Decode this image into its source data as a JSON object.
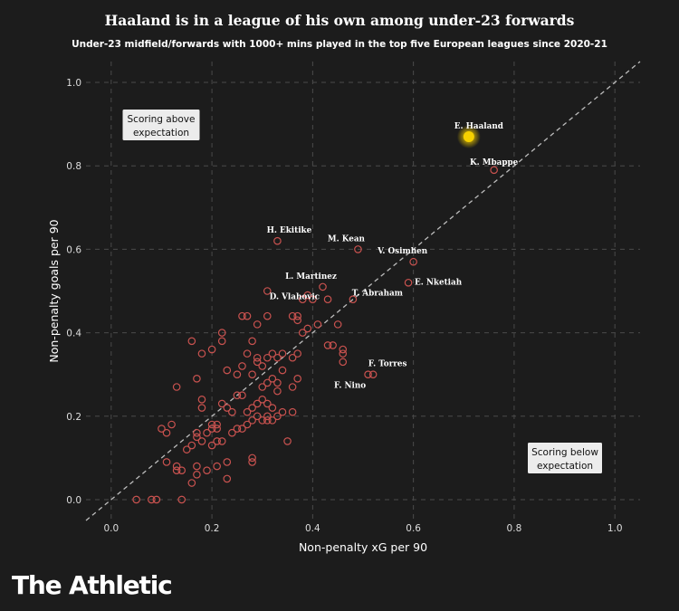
{
  "brand": "The Athletic",
  "chart_data": {
    "type": "scatter",
    "title": "Haaland is in a league of his own among under-23 forwards",
    "subtitle": "Under-23 midfield/forwards with 1000+ mins played in the top five European leagues since 2020-21",
    "xlabel": "Non-penalty xG per 90",
    "ylabel": "Non-penalty goals per 90",
    "xlim": [
      -0.05,
      1.05
    ],
    "ylim": [
      -0.05,
      1.05
    ],
    "xticks": [
      "0.0",
      "0.2",
      "0.4",
      "0.6",
      "0.8",
      "1.0"
    ],
    "yticks": [
      "0.0",
      "0.2",
      "0.4",
      "0.6",
      "0.8",
      "1.0"
    ],
    "grid": true,
    "reference_line": "y = x",
    "annotations": {
      "above": "Scoring above expectation",
      "below": "Scoring below expectation"
    },
    "colors": {
      "point": "#c9524f",
      "highlight": "#f5d000",
      "background": "#1c1c1c"
    },
    "highlight": {
      "name": "E. Haaland",
      "x": 0.71,
      "y": 0.87
    },
    "labeled": [
      {
        "name": "K. Mbappe",
        "x": 0.76,
        "y": 0.79
      },
      {
        "name": "H. Ekitike",
        "x": 0.33,
        "y": 0.62
      },
      {
        "name": "M. Kean",
        "x": 0.49,
        "y": 0.6
      },
      {
        "name": "L. Martinez",
        "x": 0.42,
        "y": 0.51
      },
      {
        "name": "V. Osimhen",
        "x": 0.6,
        "y": 0.57
      },
      {
        "name": "D. Vlahovic",
        "x": 0.4,
        "y": 0.48
      },
      {
        "name": "T. Abraham",
        "x": 0.48,
        "y": 0.48
      },
      {
        "name": "E. Nketiah",
        "x": 0.59,
        "y": 0.52
      },
      {
        "name": "F. Torres",
        "x": 0.52,
        "y": 0.3
      },
      {
        "name": "F. Nino",
        "x": 0.51,
        "y": 0.3
      }
    ],
    "points": [
      [
        0.05,
        0.0
      ],
      [
        0.08,
        0.0
      ],
      [
        0.09,
        0.0
      ],
      [
        0.14,
        0.0
      ],
      [
        0.16,
        0.04
      ],
      [
        0.17,
        0.06
      ],
      [
        0.17,
        0.08
      ],
      [
        0.13,
        0.07
      ],
      [
        0.14,
        0.07
      ],
      [
        0.11,
        0.09
      ],
      [
        0.13,
        0.08
      ],
      [
        0.19,
        0.07
      ],
      [
        0.21,
        0.08
      ],
      [
        0.23,
        0.05
      ],
      [
        0.23,
        0.09
      ],
      [
        0.28,
        0.09
      ],
      [
        0.28,
        0.1
      ],
      [
        0.35,
        0.14
      ],
      [
        0.1,
        0.17
      ],
      [
        0.11,
        0.16
      ],
      [
        0.12,
        0.18
      ],
      [
        0.15,
        0.12
      ],
      [
        0.16,
        0.13
      ],
      [
        0.17,
        0.15
      ],
      [
        0.17,
        0.16
      ],
      [
        0.18,
        0.14
      ],
      [
        0.19,
        0.16
      ],
      [
        0.2,
        0.17
      ],
      [
        0.2,
        0.18
      ],
      [
        0.21,
        0.17
      ],
      [
        0.21,
        0.18
      ],
      [
        0.2,
        0.13
      ],
      [
        0.21,
        0.14
      ],
      [
        0.22,
        0.14
      ],
      [
        0.24,
        0.16
      ],
      [
        0.25,
        0.17
      ],
      [
        0.26,
        0.17
      ],
      [
        0.27,
        0.18
      ],
      [
        0.28,
        0.19
      ],
      [
        0.29,
        0.2
      ],
      [
        0.3,
        0.19
      ],
      [
        0.31,
        0.19
      ],
      [
        0.31,
        0.2
      ],
      [
        0.32,
        0.19
      ],
      [
        0.33,
        0.2
      ],
      [
        0.34,
        0.21
      ],
      [
        0.36,
        0.21
      ],
      [
        0.18,
        0.22
      ],
      [
        0.18,
        0.24
      ],
      [
        0.22,
        0.23
      ],
      [
        0.23,
        0.22
      ],
      [
        0.24,
        0.21
      ],
      [
        0.25,
        0.25
      ],
      [
        0.26,
        0.25
      ],
      [
        0.27,
        0.21
      ],
      [
        0.28,
        0.22
      ],
      [
        0.29,
        0.23
      ],
      [
        0.3,
        0.24
      ],
      [
        0.31,
        0.23
      ],
      [
        0.32,
        0.22
      ],
      [
        0.33,
        0.26
      ],
      [
        0.36,
        0.27
      ],
      [
        0.13,
        0.27
      ],
      [
        0.3,
        0.27
      ],
      [
        0.31,
        0.28
      ],
      [
        0.32,
        0.29
      ],
      [
        0.33,
        0.28
      ],
      [
        0.37,
        0.29
      ],
      [
        0.17,
        0.29
      ],
      [
        0.23,
        0.31
      ],
      [
        0.25,
        0.3
      ],
      [
        0.26,
        0.32
      ],
      [
        0.28,
        0.3
      ],
      [
        0.29,
        0.33
      ],
      [
        0.3,
        0.32
      ],
      [
        0.31,
        0.34
      ],
      [
        0.32,
        0.35
      ],
      [
        0.34,
        0.31
      ],
      [
        0.18,
        0.35
      ],
      [
        0.2,
        0.36
      ],
      [
        0.22,
        0.38
      ],
      [
        0.22,
        0.4
      ],
      [
        0.16,
        0.38
      ],
      [
        0.27,
        0.35
      ],
      [
        0.29,
        0.34
      ],
      [
        0.33,
        0.34
      ],
      [
        0.34,
        0.35
      ],
      [
        0.36,
        0.34
      ],
      [
        0.37,
        0.35
      ],
      [
        0.26,
        0.44
      ],
      [
        0.27,
        0.44
      ],
      [
        0.29,
        0.42
      ],
      [
        0.31,
        0.44
      ],
      [
        0.28,
        0.38
      ],
      [
        0.36,
        0.44
      ],
      [
        0.37,
        0.43
      ],
      [
        0.37,
        0.44
      ],
      [
        0.38,
        0.4
      ],
      [
        0.39,
        0.41
      ],
      [
        0.41,
        0.42
      ],
      [
        0.43,
        0.37
      ],
      [
        0.44,
        0.37
      ],
      [
        0.45,
        0.42
      ],
      [
        0.46,
        0.36
      ],
      [
        0.46,
        0.33
      ],
      [
        0.38,
        0.48
      ],
      [
        0.39,
        0.49
      ],
      [
        0.43,
        0.48
      ],
      [
        0.31,
        0.5
      ],
      [
        0.46,
        0.35
      ]
    ]
  }
}
